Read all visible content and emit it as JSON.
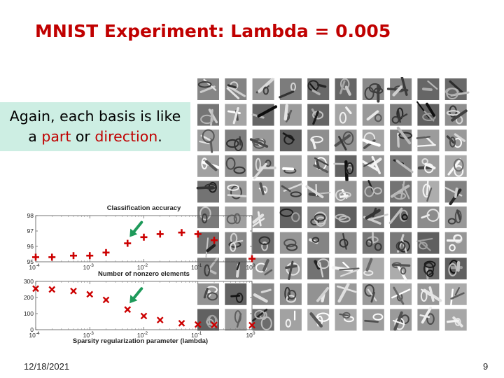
{
  "slide": {
    "title": "MNIST Experiment: Lambda = 0.005",
    "callout": {
      "line1": "Again, each basis is like",
      "line2_pre": "a ",
      "line2_h1": "part",
      "line2_mid": " or ",
      "line2_h2": "direction",
      "line2_post": "."
    },
    "footer_date": "12/18/2021",
    "page_number": "9"
  },
  "colors": {
    "title": "#c00000",
    "marker": "#cc0000",
    "arrow": "#1e9a5a",
    "callout_bg": "#cdeee3"
  },
  "basis_grid": {
    "rows": 10,
    "cols": 10,
    "description_icon": "learned-basis-image-icon"
  },
  "chart_data": [
    {
      "type": "scatter",
      "title": "Classification accuracy",
      "xlabel": "",
      "ylabel": "",
      "x_scale": "log",
      "xlim": [
        0.0001,
        1
      ],
      "ylim": [
        95,
        98
      ],
      "x_tick_labels": [
        "10^-4",
        "10^-3",
        "10^-2",
        "10^-1",
        "10^0"
      ],
      "y_tick_labels": [
        "95",
        "96",
        "97",
        "98"
      ],
      "marker": "plus",
      "series": [
        {
          "x": [
            0.0001,
            0.0002,
            0.0005,
            0.001,
            0.002,
            0.005,
            0.01,
            0.02,
            0.05,
            0.1,
            0.2,
            1
          ],
          "y": [
            95.3,
            95.3,
            95.4,
            95.4,
            95.6,
            96.2,
            96.6,
            96.8,
            96.9,
            96.8,
            96.4,
            95.2
          ]
        }
      ],
      "annotation": "arrow pointing at lambda = 0.005"
    },
    {
      "type": "scatter",
      "title": "Number of nonzero elements",
      "xlabel": "Sparsity regularization parameter (lambda)",
      "ylabel": "",
      "x_scale": "log",
      "xlim": [
        0.0001,
        1
      ],
      "ylim": [
        0,
        300
      ],
      "x_tick_labels": [
        "10^-4",
        "10^-3",
        "10^-2",
        "10^-1",
        "10^0"
      ],
      "y_tick_labels": [
        "0",
        "100",
        "200",
        "300"
      ],
      "marker": "x",
      "series": [
        {
          "x": [
            0.0001,
            0.0002,
            0.0005,
            0.001,
            0.002,
            0.005,
            0.01,
            0.02,
            0.05,
            0.1,
            0.2,
            1
          ],
          "y": [
            255,
            250,
            240,
            220,
            185,
            125,
            85,
            60,
            40,
            32,
            30,
            28
          ]
        }
      ],
      "annotation": "arrow pointing at lambda = 0.005"
    }
  ]
}
